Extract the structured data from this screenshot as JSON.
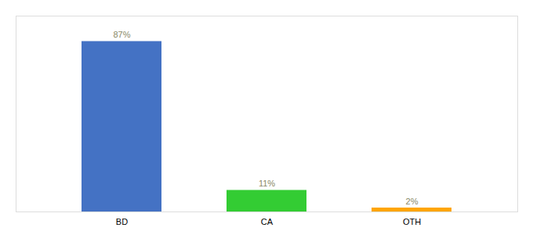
{
  "chart_data": {
    "type": "bar",
    "categories": [
      "BD",
      "CA",
      "OTH"
    ],
    "values": [
      87,
      11,
      2
    ],
    "value_labels": [
      "87%",
      "11%",
      "2%"
    ],
    "colors": [
      "#4472C4",
      "#33CC33",
      "#FFA500"
    ],
    "ylim": [
      0,
      100
    ],
    "data_labels": true,
    "tick_labels": "x",
    "grid": false
  }
}
